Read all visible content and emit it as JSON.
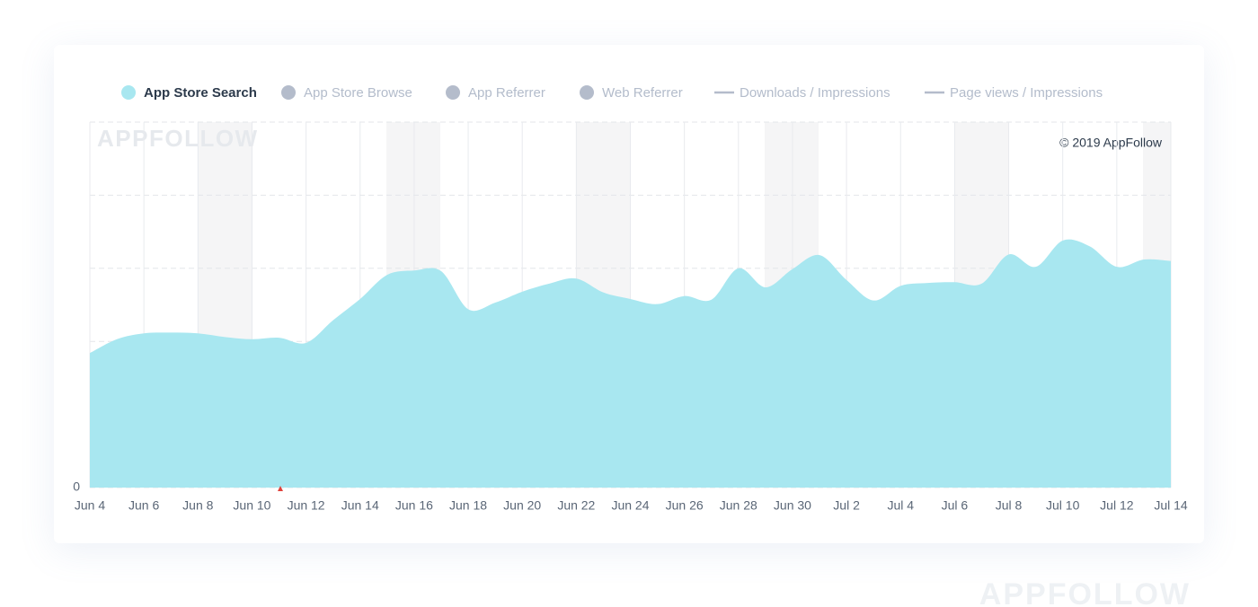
{
  "chart_data": {
    "type": "area",
    "watermark": "APPFOLLOW",
    "copyright": "© 2019 AppFollow",
    "categories": [
      "Jun 4",
      null,
      "Jun 6",
      null,
      "Jun 8",
      null,
      "Jun 10",
      null,
      "Jun 12",
      null,
      "Jun 14",
      null,
      "Jun 16",
      null,
      "Jun 18",
      null,
      "Jun 20",
      null,
      "Jun 22",
      null,
      "Jun 24",
      null,
      "Jun 26",
      null,
      "Jun 28",
      null,
      "Jun 30",
      null,
      "Jul 2",
      null,
      "Jul 4",
      null,
      "Jul 6",
      null,
      "Jul 8",
      null,
      "Jul 10",
      null,
      "Jul 12",
      null,
      "Jul 14"
    ],
    "series": [
      {
        "name": "App Store Search",
        "color": "#a8e7f0",
        "values": [
          1.84,
          2.03,
          2.11,
          2.12,
          2.11,
          2.06,
          2.03,
          2.05,
          1.98,
          2.29,
          2.58,
          2.91,
          2.97,
          2.96,
          2.44,
          2.53,
          2.68,
          2.79,
          2.86,
          2.67,
          2.58,
          2.51,
          2.62,
          2.57,
          3.0,
          2.74,
          2.99,
          3.18,
          2.84,
          2.56,
          2.76,
          2.8,
          2.81,
          2.79,
          3.19,
          3.02,
          3.38,
          3.3,
          3.02,
          3.12,
          3.1
        ]
      }
    ],
    "inactive_series": [
      {
        "name": "App Store Browse",
        "marker": "circle"
      },
      {
        "name": "App Referrer",
        "marker": "circle"
      },
      {
        "name": "Web Referrer",
        "marker": "circle"
      },
      {
        "name": "Downloads / Impressions",
        "marker": "line"
      },
      {
        "name": "Page views / Impressions",
        "marker": "line"
      }
    ],
    "inactive_color": "#b4bccb",
    "ylim": [
      0,
      5
    ],
    "yticks": [
      0
    ],
    "grid": true
  }
}
